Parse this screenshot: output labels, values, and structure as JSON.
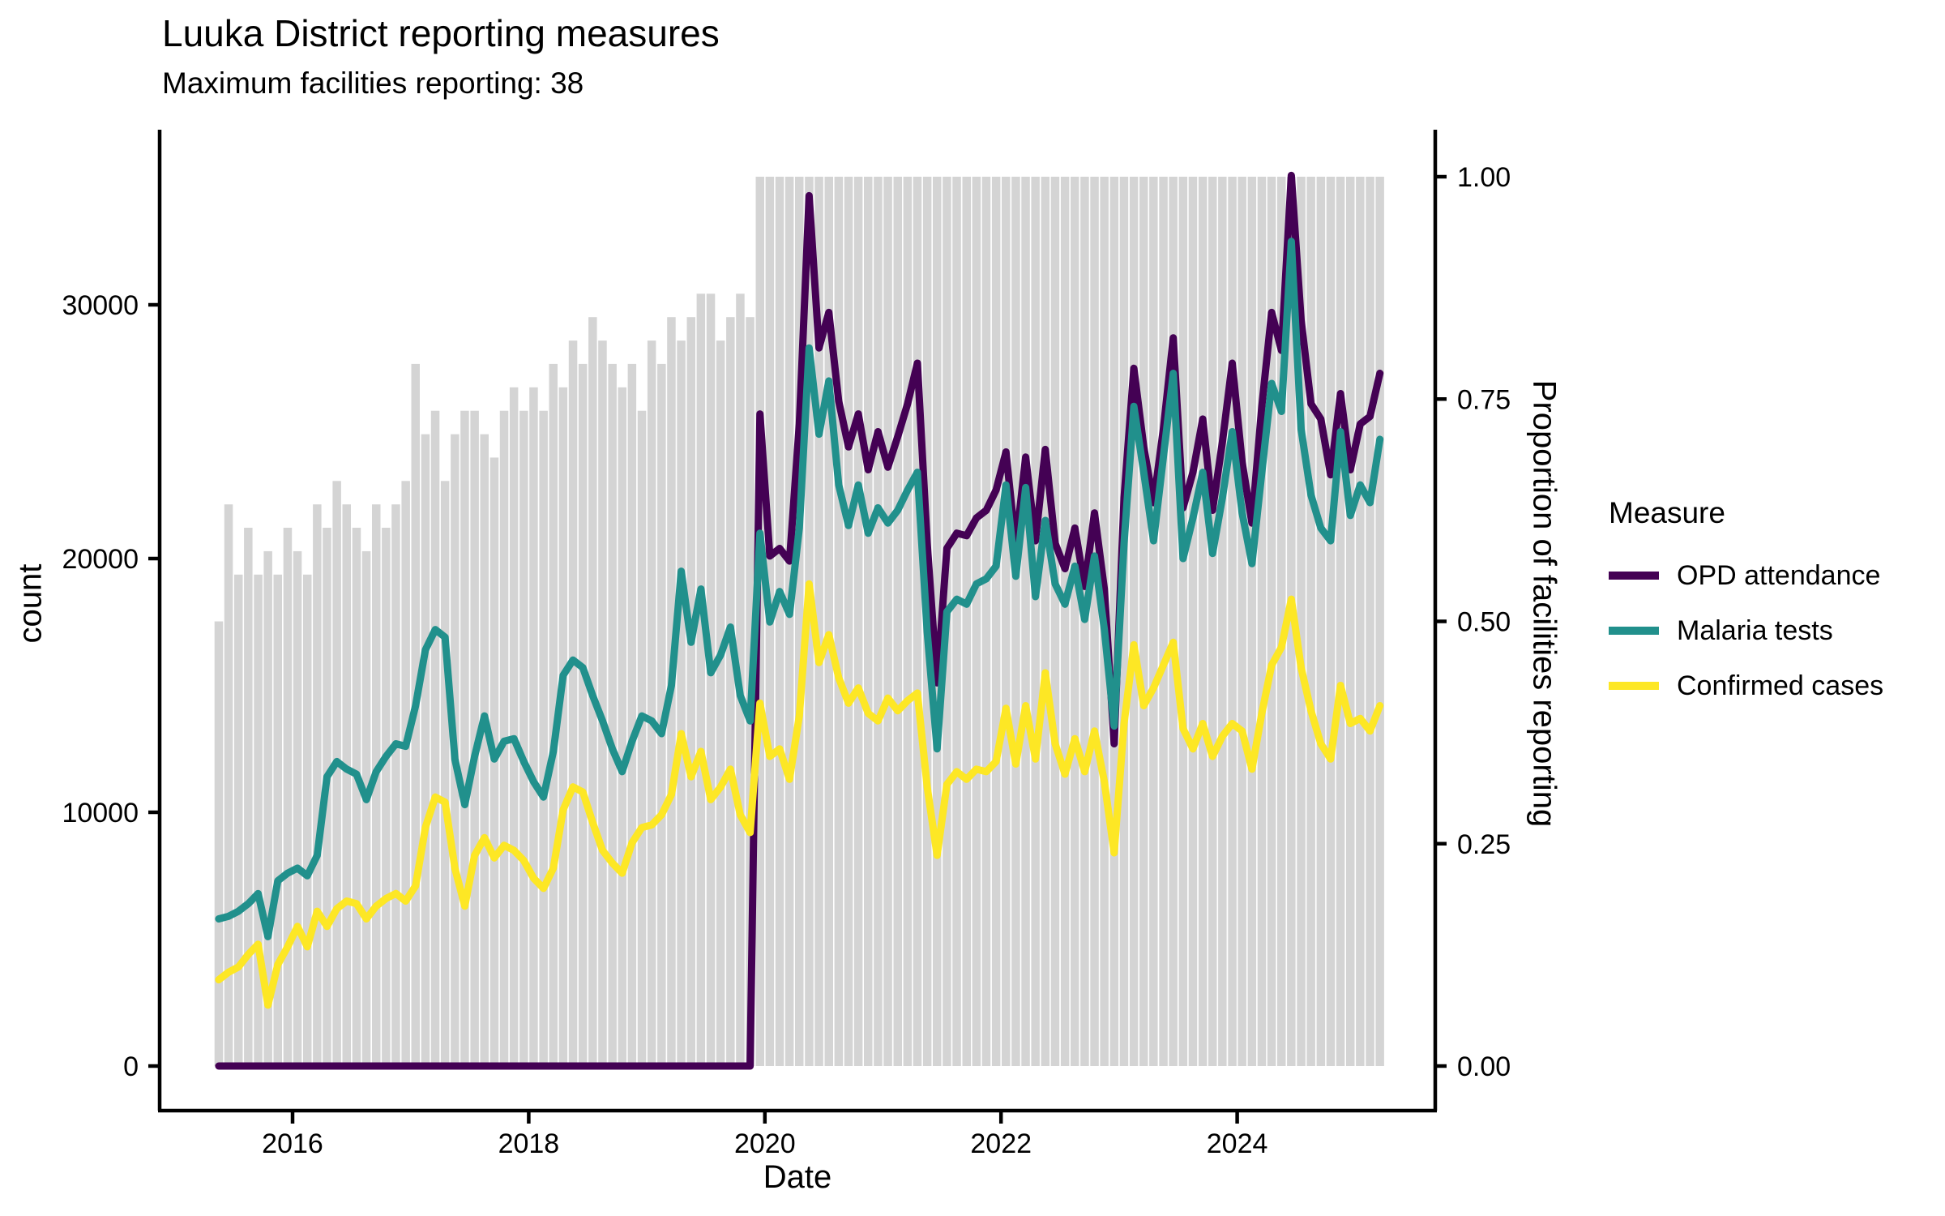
{
  "title": "Luuka District reporting measures",
  "subtitle": "Maximum facilities reporting: 38",
  "x_axis": {
    "label": "Date",
    "ticks": [
      "2016",
      "2018",
      "2020",
      "2022",
      "2024"
    ]
  },
  "y_left": {
    "label": "count",
    "ticks": [
      "0",
      "10000",
      "20000",
      "30000"
    ],
    "tick_values": [
      0,
      10000,
      20000,
      30000
    ]
  },
  "y_right": {
    "label": "Proportion of facilities reporting",
    "ticks": [
      "0.00",
      "0.25",
      "0.50",
      "0.75",
      "1.00"
    ],
    "tick_values": [
      0,
      0.25,
      0.5,
      0.75,
      1
    ]
  },
  "legend": {
    "title": "Measure",
    "items": [
      {
        "label": "OPD attendance",
        "color": "#440154"
      },
      {
        "label": "Malaria tests",
        "color": "#21908C"
      },
      {
        "label": "Confirmed cases",
        "color": "#FDE725"
      }
    ]
  },
  "colors": {
    "opd": "#440154",
    "malaria": "#21908C",
    "confirmed": "#FDE725",
    "bars": "#D4D4D4",
    "axis": "#000000",
    "background": "#FFFFFF"
  },
  "chart_data": {
    "type": "line",
    "title": "Luuka District reporting measures",
    "subtitle": "Maximum facilities reporting: 38",
    "xlabel": "Date",
    "ylabel_left": "count",
    "ylabel_right": "Proportion of facilities reporting",
    "x_start": "2015-05",
    "x_end": "2025-03",
    "x_frequency": "monthly",
    "n_points": 119,
    "x_tick_years": [
      2016,
      2018,
      2020,
      2022,
      2024
    ],
    "ylim_left": [
      0,
      38000
    ],
    "ylim_right": [
      0,
      1.08
    ],
    "grid": false,
    "legend_position": "right",
    "secondary_axis_count_per_unit": 35050,
    "bars": {
      "name": "Proportion of facilities reporting",
      "axis": "right",
      "max_facilities": 38,
      "facilities_reporting": [
        19,
        24,
        21,
        23,
        21,
        22,
        21,
        23,
        22,
        21,
        24,
        23,
        25,
        24,
        23,
        22,
        24,
        23,
        24,
        25,
        30,
        27,
        28,
        25,
        27,
        28,
        28,
        27,
        26,
        28,
        29,
        28,
        29,
        28,
        30,
        29,
        31,
        30,
        32,
        31,
        30,
        29,
        30,
        28,
        31,
        30,
        32,
        31,
        32,
        33,
        33,
        31,
        32,
        33,
        32,
        38,
        38,
        38,
        38,
        38,
        38,
        38,
        38,
        38,
        38,
        38,
        38,
        38,
        38,
        38,
        38,
        38,
        38,
        38,
        38,
        38,
        38,
        38,
        38,
        38,
        38,
        38,
        38,
        38,
        38,
        38,
        38,
        38,
        38,
        38,
        38,
        38,
        38,
        38,
        38,
        38,
        38,
        38,
        38,
        38,
        38,
        38,
        38,
        38,
        38,
        38,
        38,
        38,
        38,
        38,
        38,
        38,
        38,
        38,
        38,
        38,
        38,
        38,
        38
      ]
    },
    "series": [
      {
        "name": "OPD attendance",
        "color": "#440154",
        "values": [
          0,
          0,
          0,
          0,
          0,
          0,
          0,
          0,
          0,
          0,
          0,
          0,
          0,
          0,
          0,
          0,
          0,
          0,
          0,
          0,
          0,
          0,
          0,
          0,
          0,
          0,
          0,
          0,
          0,
          0,
          0,
          0,
          0,
          0,
          0,
          0,
          0,
          0,
          0,
          0,
          0,
          0,
          0,
          0,
          0,
          0,
          0,
          0,
          0,
          0,
          0,
          0,
          0,
          0,
          0,
          25700,
          20100,
          20400,
          19900,
          25300,
          34300,
          28300,
          29700,
          26200,
          24400,
          25700,
          23500,
          25000,
          23600,
          24800,
          26100,
          27700,
          20600,
          15100,
          20400,
          21000,
          20900,
          21600,
          21900,
          22700,
          24200,
          20500,
          24000,
          20700,
          24300,
          20600,
          19600,
          21200,
          18900,
          21800,
          18800,
          12700,
          22400,
          27500,
          24400,
          22200,
          25100,
          28700,
          22000,
          23400,
          25500,
          21900,
          24600,
          27700,
          23800,
          21400,
          26000,
          29700,
          28200,
          35100,
          29400,
          26100,
          25500,
          23300,
          26500,
          23500,
          25300,
          25600,
          27300
        ]
      },
      {
        "name": "Malaria tests",
        "color": "#21908C",
        "values": [
          5800,
          5900,
          6100,
          6400,
          6800,
          5100,
          7300,
          7600,
          7800,
          7500,
          8300,
          11400,
          12000,
          11700,
          11500,
          10500,
          11600,
          12200,
          12700,
          12600,
          14200,
          16400,
          17200,
          16900,
          12100,
          10300,
          12200,
          13800,
          12100,
          12800,
          12900,
          12000,
          11200,
          10600,
          12400,
          15400,
          16000,
          15700,
          14600,
          13600,
          12500,
          11600,
          12800,
          13800,
          13600,
          13100,
          15000,
          19500,
          16700,
          18800,
          15500,
          16200,
          17300,
          14600,
          13600,
          21000,
          17500,
          18700,
          17800,
          21200,
          28300,
          24900,
          27000,
          22900,
          21300,
          22900,
          21000,
          22000,
          21400,
          21900,
          22700,
          23400,
          17100,
          12500,
          17900,
          18400,
          18200,
          19000,
          19200,
          19700,
          22900,
          19300,
          22800,
          18500,
          21500,
          19000,
          18200,
          19700,
          17600,
          20100,
          17200,
          13400,
          20600,
          26000,
          23400,
          20700,
          24000,
          27300,
          20000,
          21600,
          23400,
          20200,
          22400,
          25000,
          21800,
          19800,
          23400,
          26900,
          25800,
          32500,
          25100,
          22500,
          21200,
          20700,
          25000,
          21700,
          22900,
          22200,
          24700
        ]
      },
      {
        "name": "Confirmed cases",
        "color": "#FDE725",
        "values": [
          3400,
          3700,
          3900,
          4400,
          4800,
          2400,
          4000,
          4700,
          5500,
          4700,
          6100,
          5500,
          6200,
          6500,
          6400,
          5800,
          6300,
          6600,
          6800,
          6500,
          7100,
          9400,
          10600,
          10400,
          7800,
          6300,
          8300,
          9000,
          8200,
          8700,
          8500,
          8100,
          7400,
          7000,
          7800,
          10100,
          11000,
          10800,
          9600,
          8500,
          8000,
          7600,
          8800,
          9400,
          9500,
          9900,
          10700,
          13100,
          11400,
          12400,
          10500,
          11000,
          11700,
          9900,
          9200,
          14300,
          12200,
          12500,
          11300,
          13800,
          19000,
          15900,
          17000,
          15300,
          14300,
          14900,
          13900,
          13600,
          14500,
          14000,
          14400,
          14700,
          11000,
          8300,
          11100,
          11600,
          11300,
          11700,
          11600,
          12000,
          14100,
          11900,
          14200,
          12100,
          15500,
          12700,
          11500,
          12900,
          11600,
          13200,
          11200,
          8400,
          13500,
          16600,
          14200,
          14900,
          15800,
          16700,
          13300,
          12500,
          13500,
          12200,
          13000,
          13500,
          13200,
          11700,
          13900,
          15800,
          16500,
          18400,
          15700,
          14000,
          12700,
          12100,
          15000,
          13500,
          13700,
          13200,
          14200
        ]
      }
    ]
  }
}
